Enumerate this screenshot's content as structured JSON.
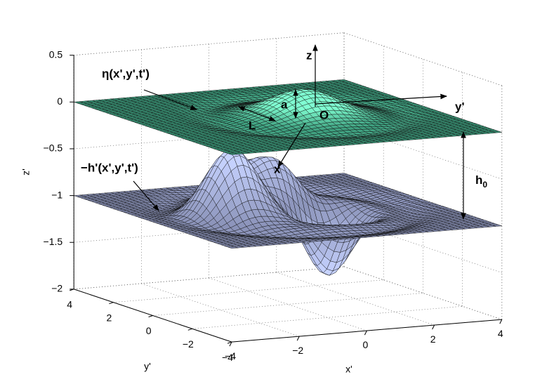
{
  "axes": {
    "z": {
      "label": "z'",
      "ticks": [
        {
          "value": 0.5,
          "label": "0.5"
        },
        {
          "value": 0,
          "label": "0"
        },
        {
          "value": -0.5,
          "label": "−0.5"
        },
        {
          "value": -1,
          "label": "−1"
        },
        {
          "value": -1.5,
          "label": "−1.5"
        },
        {
          "value": -2,
          "label": "−2"
        }
      ]
    },
    "y": {
      "label": "y'",
      "ticks": [
        {
          "value": 4,
          "label": "4"
        },
        {
          "value": 2,
          "label": "2"
        },
        {
          "value": 0,
          "label": "0"
        },
        {
          "value": -2,
          "label": "−2"
        },
        {
          "value": -4,
          "label": "−4"
        }
      ]
    },
    "x": {
      "label": "x'",
      "ticks": [
        {
          "value": -4,
          "label": "−4"
        },
        {
          "value": -2,
          "label": "−2"
        },
        {
          "value": 0,
          "label": "0"
        },
        {
          "value": 2,
          "label": "2"
        },
        {
          "value": 4,
          "label": "4"
        }
      ]
    }
  },
  "annotations": {
    "eta": "η(x',y',t')",
    "depth": "−h'(x',y',t')",
    "h0": "h",
    "h0_sub": "0",
    "z": "z",
    "y": "y'",
    "x": "x",
    "a": "a",
    "L": "L",
    "O": "O"
  }
}
